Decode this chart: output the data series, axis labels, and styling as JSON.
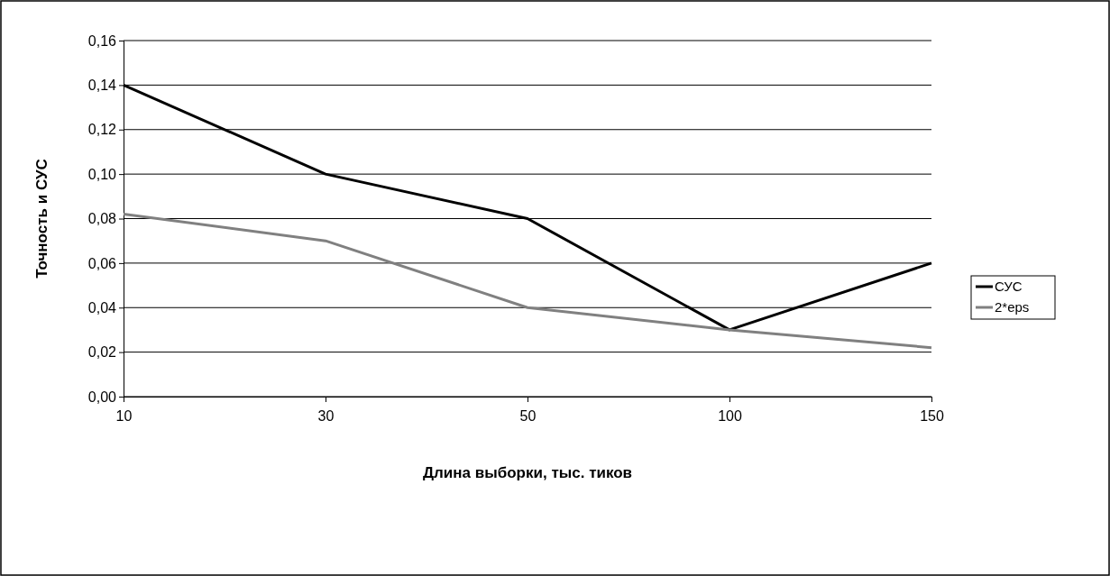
{
  "chart_data": {
    "type": "line",
    "xlabel": "Длина выборки, тыс. тиков",
    "ylabel": "Точность и СУС",
    "categories": [
      "10",
      "30",
      "50",
      "100",
      "150"
    ],
    "series": [
      {
        "name": "СУС",
        "color": "#000000",
        "values": [
          0.14,
          0.1,
          0.08,
          0.03,
          0.06
        ]
      },
      {
        "name": "2*eps",
        "color": "#808080",
        "values": [
          0.082,
          0.07,
          0.04,
          0.03,
          0.022
        ]
      }
    ],
    "ylim": [
      0,
      0.16
    ],
    "yticks": [
      {
        "value": 0,
        "label": "0,00"
      },
      {
        "value": 0.02,
        "label": "0,02"
      },
      {
        "value": 0.04,
        "label": "0,04"
      },
      {
        "value": 0.06,
        "label": "0,06"
      },
      {
        "value": 0.08,
        "label": "0,08"
      },
      {
        "value": 0.1,
        "label": "0,10"
      },
      {
        "value": 0.12,
        "label": "0,12"
      },
      {
        "value": 0.14,
        "label": "0,14"
      },
      {
        "value": 0.16,
        "label": "0,16"
      }
    ],
    "grid": "y",
    "legend": "right",
    "marker": "none",
    "line_style": "solid"
  }
}
